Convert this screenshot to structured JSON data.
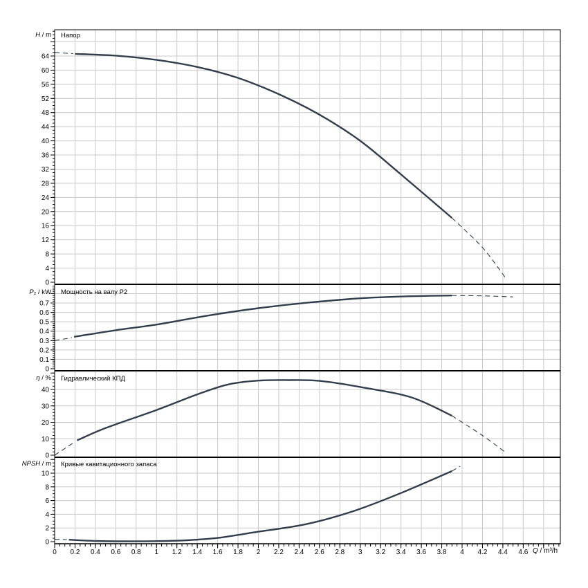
{
  "figure": {
    "background": "#ffffff",
    "colors": {
      "curve": "#323e4b",
      "grid": "#c9c9c9",
      "axis": "#000000",
      "text": "#000000"
    },
    "x_axis": {
      "label_var": "Q",
      "label_rest": " / m³/h",
      "min": 0,
      "max": 4.96,
      "major_step": 0.2,
      "minor_step": 0.05,
      "last_tick_label": 4.6
    }
  },
  "chart_data": [
    {
      "type": "line",
      "title": "Напор",
      "ylabel": {
        "var": "H",
        "rest": " / m"
      },
      "ylim": [
        0,
        71.4
      ],
      "y_major": 4,
      "y_minor": 1,
      "y_label_max": 64,
      "grid": true,
      "series": [
        {
          "name": "head-dashed-start",
          "style": "dashed",
          "points": [
            [
              0,
              65.0
            ],
            [
              0.18,
              64.65
            ]
          ]
        },
        {
          "name": "head-solid",
          "style": "solid",
          "points": [
            [
              0.2,
              64.6
            ],
            [
              0.6,
              64.1
            ],
            [
              1.0,
              62.9
            ],
            [
              1.4,
              60.9
            ],
            [
              1.8,
              57.8
            ],
            [
              2.2,
              53.2
            ],
            [
              2.6,
              47.4
            ],
            [
              3.0,
              40.0
            ],
            [
              3.4,
              30.5
            ],
            [
              3.9,
              18.2
            ]
          ]
        },
        {
          "name": "head-dashed-end",
          "style": "dashed",
          "points": [
            [
              3.9,
              18.2
            ],
            [
              4.2,
              9.8
            ],
            [
              4.44,
              0.7
            ]
          ]
        }
      ]
    },
    {
      "type": "line",
      "title": "Мощность на валу P2",
      "ylabel": {
        "var": "P",
        "rest": "₂ / kW"
      },
      "ylim": [
        0,
        0.88
      ],
      "y_major": 0.1,
      "y_minor": 0.02,
      "y_label_max": 0.7,
      "grid": true,
      "series": [
        {
          "name": "p2-dashed-start",
          "style": "dashed",
          "points": [
            [
              0,
              0.3
            ],
            [
              0.17,
              0.33
            ]
          ]
        },
        {
          "name": "p2-solid",
          "style": "solid",
          "points": [
            [
              0.19,
              0.34
            ],
            [
              0.6,
              0.41
            ],
            [
              1.0,
              0.47
            ],
            [
              1.5,
              0.565
            ],
            [
              2.0,
              0.645
            ],
            [
              2.5,
              0.705
            ],
            [
              3.0,
              0.75
            ],
            [
              3.5,
              0.772
            ],
            [
              3.9,
              0.78
            ]
          ]
        },
        {
          "name": "p2-dashed-end",
          "style": "dashed",
          "points": [
            [
              3.9,
              0.78
            ],
            [
              4.2,
              0.776
            ],
            [
              4.5,
              0.765
            ]
          ]
        }
      ]
    },
    {
      "type": "line",
      "title": "Гидравлический КПД",
      "ylabel": {
        "var": "η",
        "rest": " / %"
      },
      "ylim": [
        0,
        50.5
      ],
      "y_major": 10,
      "y_minor": 2,
      "y_label_max": 40,
      "grid": true,
      "series": [
        {
          "name": "eff-dashed-start",
          "style": "dashed",
          "points": [
            [
              0,
              0
            ],
            [
              0.2,
              8.2
            ]
          ]
        },
        {
          "name": "eff-solid",
          "style": "solid",
          "points": [
            [
              0.22,
              9
            ],
            [
              0.5,
              16.5
            ],
            [
              1.0,
              27.5
            ],
            [
              1.4,
              37
            ],
            [
              1.7,
              43
            ],
            [
              2.0,
              45.4
            ],
            [
              2.3,
              45.7
            ],
            [
              2.6,
              45.2
            ],
            [
              3.0,
              41.5
            ],
            [
              3.5,
              35.2
            ],
            [
              3.9,
              24
            ]
          ]
        },
        {
          "name": "eff-dashed-end",
          "style": "dashed",
          "points": [
            [
              3.9,
              24
            ],
            [
              4.2,
              12
            ],
            [
              4.43,
              1.5
            ]
          ]
        }
      ]
    },
    {
      "type": "line",
      "title": "Кривые кавитационного запаса",
      "ylabel": {
        "var": "NPSH",
        "rest": " / m"
      },
      "ylim": [
        0,
        12.1
      ],
      "y_major": 2,
      "y_minor": 0.5,
      "y_label_max": 10,
      "grid": true,
      "series": [
        {
          "name": "npsh-dashed-start",
          "style": "dashed",
          "points": [
            [
              0,
              0.35
            ],
            [
              0.12,
              0.3
            ]
          ]
        },
        {
          "name": "npsh-solid",
          "style": "solid",
          "points": [
            [
              0.14,
              0.28
            ],
            [
              0.4,
              0.1
            ],
            [
              0.7,
              0.05
            ],
            [
              1.0,
              0.08
            ],
            [
              1.3,
              0.2
            ],
            [
              1.6,
              0.55
            ],
            [
              2.0,
              1.45
            ],
            [
              2.4,
              2.35
            ],
            [
              2.7,
              3.4
            ],
            [
              3.0,
              4.8
            ],
            [
              3.4,
              7.1
            ],
            [
              3.9,
              10.3
            ]
          ]
        },
        {
          "name": "npsh-dashed-end",
          "style": "dashed",
          "points": [
            [
              3.9,
              10.3
            ],
            [
              3.98,
              11.0
            ]
          ]
        }
      ]
    }
  ]
}
